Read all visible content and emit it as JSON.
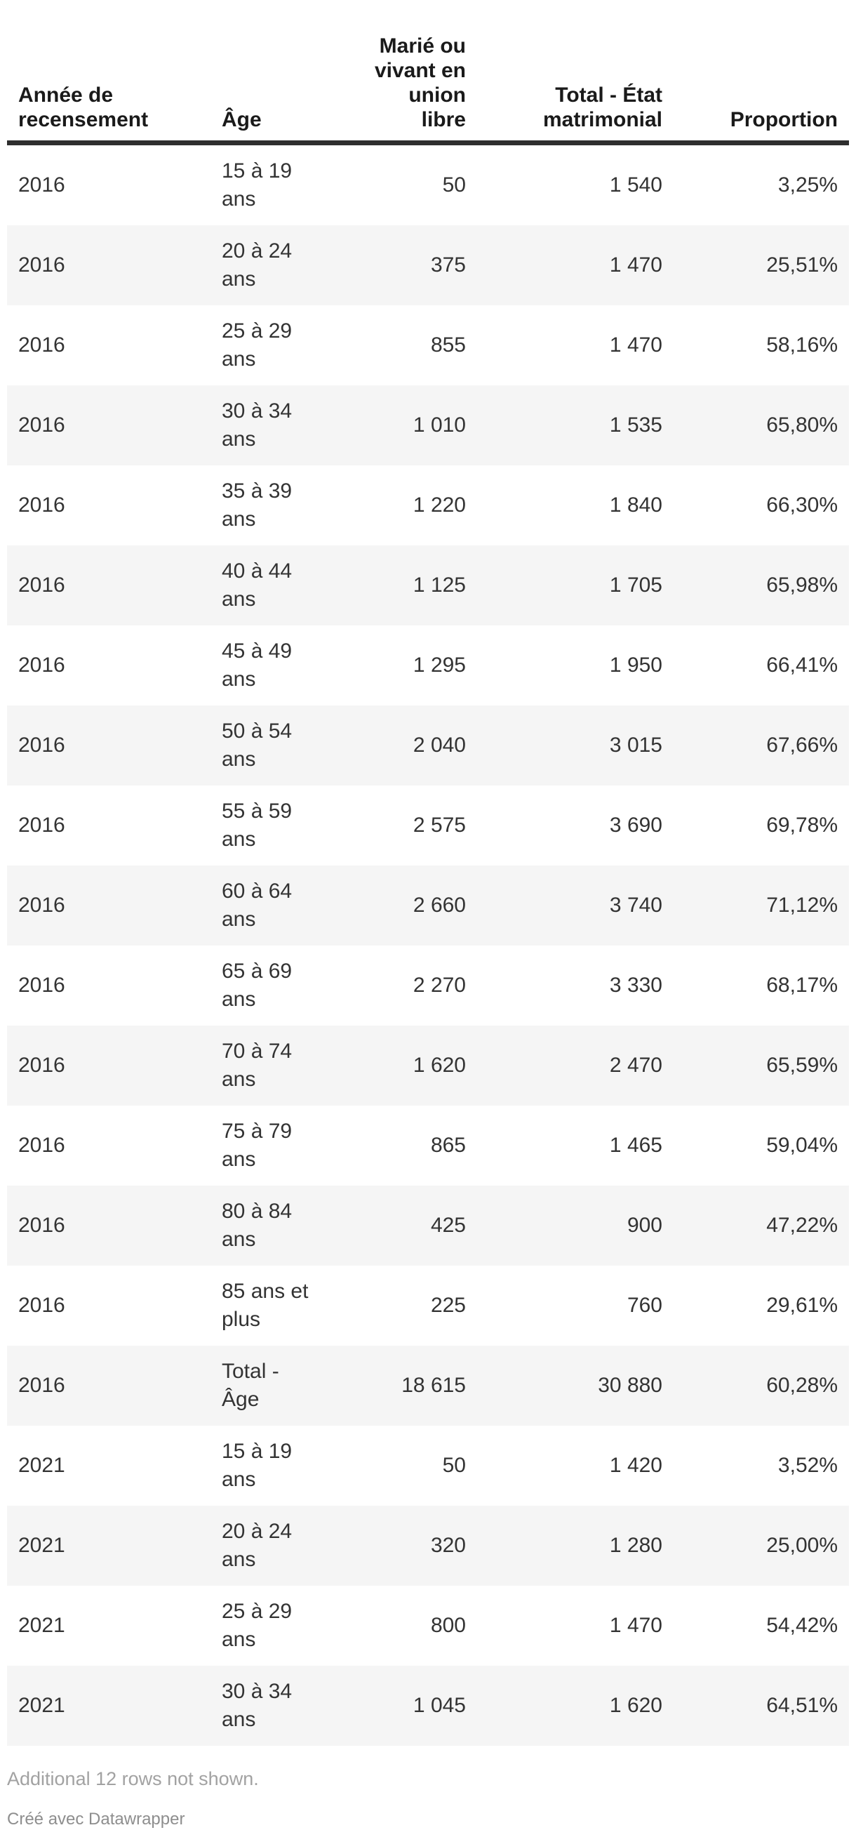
{
  "chart_data": {
    "type": "table",
    "columns": [
      {
        "label": "Année de\nrecensement",
        "align": "left"
      },
      {
        "label": "Âge",
        "align": "left"
      },
      {
        "label": "Marié ou\nvivant en\nunion\nlibre",
        "align": "right"
      },
      {
        "label": "Total - État\nmatrimonial",
        "align": "right"
      },
      {
        "label": "Proportion",
        "align": "right"
      }
    ],
    "rows": [
      [
        "2016",
        "15 à 19 ans",
        "50",
        "1 540",
        "3,25%"
      ],
      [
        "2016",
        "20 à 24 ans",
        "375",
        "1 470",
        "25,51%"
      ],
      [
        "2016",
        "25 à 29 ans",
        "855",
        "1 470",
        "58,16%"
      ],
      [
        "2016",
        "30 à 34 ans",
        "1 010",
        "1 535",
        "65,80%"
      ],
      [
        "2016",
        "35 à 39 ans",
        "1 220",
        "1 840",
        "66,30%"
      ],
      [
        "2016",
        "40 à 44 ans",
        "1 125",
        "1 705",
        "65,98%"
      ],
      [
        "2016",
        "45 à 49 ans",
        "1 295",
        "1 950",
        "66,41%"
      ],
      [
        "2016",
        "50 à 54 ans",
        "2 040",
        "3 015",
        "67,66%"
      ],
      [
        "2016",
        "55 à 59 ans",
        "2 575",
        "3 690",
        "69,78%"
      ],
      [
        "2016",
        "60 à 64 ans",
        "2 660",
        "3 740",
        "71,12%"
      ],
      [
        "2016",
        "65 à 69 ans",
        "2 270",
        "3 330",
        "68,17%"
      ],
      [
        "2016",
        "70 à 74 ans",
        "1 620",
        "2 470",
        "65,59%"
      ],
      [
        "2016",
        "75 à 79 ans",
        "865",
        "1 465",
        "59,04%"
      ],
      [
        "2016",
        "80 à 84 ans",
        "425",
        "900",
        "47,22%"
      ],
      [
        "2016",
        "85 ans et\nplus",
        "225",
        "760",
        "29,61%"
      ],
      [
        "2016",
        "Total - Âge",
        "18 615",
        "30 880",
        "60,28%"
      ],
      [
        "2021",
        "15 à 19 ans",
        "50",
        "1 420",
        "3,52%"
      ],
      [
        "2021",
        "20 à 24 ans",
        "320",
        "1 280",
        "25,00%"
      ],
      [
        "2021",
        "25 à 29 ans",
        "800",
        "1 470",
        "54,42%"
      ],
      [
        "2021",
        "30 à 34 ans",
        "1 045",
        "1 620",
        "64,51%"
      ]
    ],
    "title": "",
    "layout_hints": {
      "striped_rows": true,
      "header_rule": true,
      "grid": false
    }
  },
  "footer": {
    "note": "Additional 12 rows not shown.",
    "attribution": "Créé avec Datawrapper"
  },
  "colors": {
    "header_text": "#1a1a1a",
    "body_text": "#333333",
    "stripe": "#f5f5f5",
    "header_rule": "#2e2e2e",
    "note_text": "#a2a2a2",
    "attribution_text": "#8e8e8e"
  }
}
